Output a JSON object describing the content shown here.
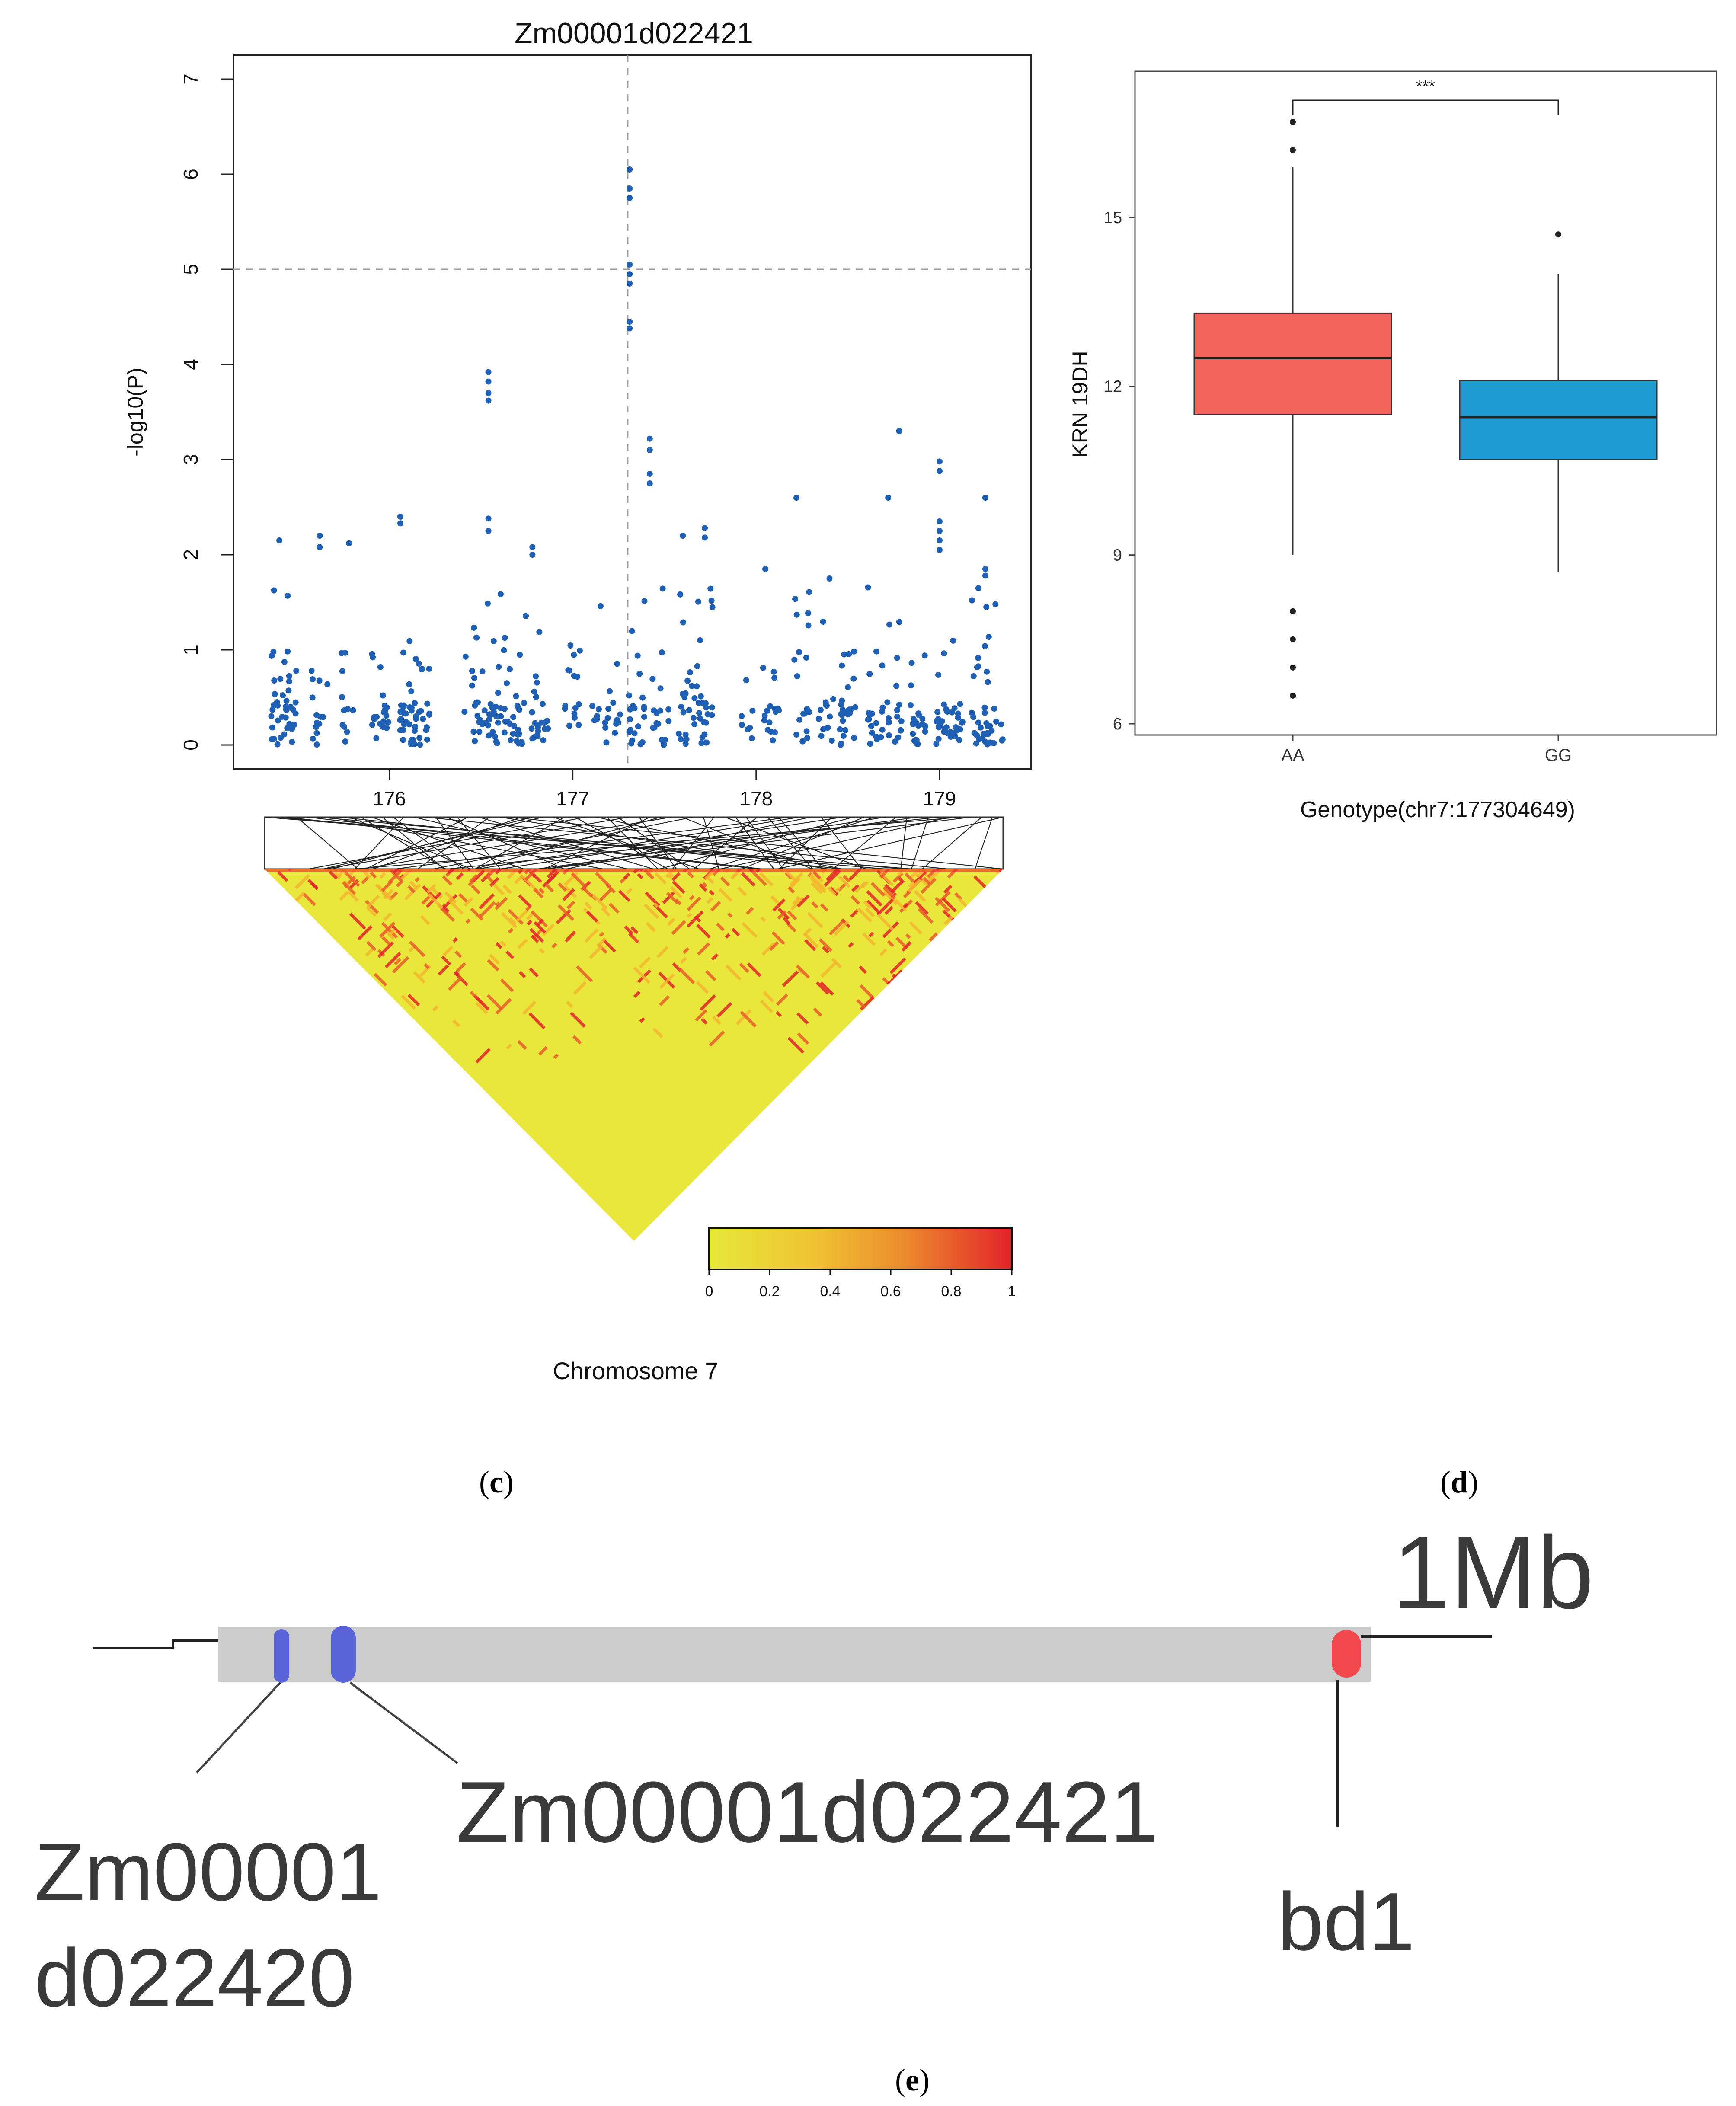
{
  "chart_data": [
    {
      "panel": "c",
      "type": "scatter",
      "title": "Zm00001d022421",
      "xlabel": "Chromosome 7",
      "ylabel": "-log10(P)",
      "xlim": [
        175.15,
        179.5
      ],
      "ylim": [
        -0.25,
        7.25
      ],
      "xticks": [
        176,
        177,
        178,
        179
      ],
      "yticks": [
        0,
        1,
        2,
        3,
        4,
        5,
        6,
        7
      ],
      "threshold_y": 5,
      "lead_snp_x": 177.3,
      "peak_points": [
        {
          "x": 177.31,
          "y": 6.05
        },
        {
          "x": 177.31,
          "y": 5.85
        },
        {
          "x": 177.31,
          "y": 5.75
        },
        {
          "x": 177.31,
          "y": 5.05
        },
        {
          "x": 177.31,
          "y": 4.95
        },
        {
          "x": 177.31,
          "y": 4.85
        },
        {
          "x": 177.31,
          "y": 4.45
        },
        {
          "x": 177.31,
          "y": 4.38
        },
        {
          "x": 176.54,
          "y": 3.92
        },
        {
          "x": 176.54,
          "y": 3.82
        },
        {
          "x": 176.54,
          "y": 3.7
        },
        {
          "x": 176.54,
          "y": 3.62
        },
        {
          "x": 176.54,
          "y": 2.38
        },
        {
          "x": 176.54,
          "y": 2.25
        },
        {
          "x": 177.42,
          "y": 3.22
        },
        {
          "x": 177.42,
          "y": 3.1
        },
        {
          "x": 177.42,
          "y": 2.85
        },
        {
          "x": 177.42,
          "y": 2.75
        },
        {
          "x": 178.78,
          "y": 3.3
        },
        {
          "x": 179.0,
          "y": 2.98
        },
        {
          "x": 179.0,
          "y": 2.88
        },
        {
          "x": 179.0,
          "y": 2.35
        },
        {
          "x": 179.0,
          "y": 2.25
        },
        {
          "x": 179.0,
          "y": 2.15
        },
        {
          "x": 179.0,
          "y": 2.05
        },
        {
          "x": 179.25,
          "y": 2.6
        },
        {
          "x": 178.22,
          "y": 2.6
        },
        {
          "x": 178.72,
          "y": 2.6
        },
        {
          "x": 176.06,
          "y": 2.4
        },
        {
          "x": 176.06,
          "y": 2.33
        },
        {
          "x": 175.62,
          "y": 2.2
        },
        {
          "x": 175.62,
          "y": 2.08
        },
        {
          "x": 175.4,
          "y": 2.15
        },
        {
          "x": 175.78,
          "y": 2.12
        },
        {
          "x": 176.78,
          "y": 2.08
        },
        {
          "x": 176.78,
          "y": 2.0
        },
        {
          "x": 177.72,
          "y": 2.28
        },
        {
          "x": 177.72,
          "y": 2.18
        },
        {
          "x": 177.6,
          "y": 2.2
        },
        {
          "x": 178.05,
          "y": 1.85
        },
        {
          "x": 178.4,
          "y": 1.75
        },
        {
          "x": 179.25,
          "y": 1.85
        },
        {
          "x": 179.25,
          "y": 1.78
        }
      ],
      "background_seed": 7,
      "background_count": 560,
      "ld_heatmap": {
        "type": "heatmap",
        "scale_ticks": [
          "0",
          "0.2",
          "0.4",
          "0.6",
          "0.8",
          "1"
        ],
        "colors": [
          "#e6e83a",
          "#f3b52f",
          "#ea5a2c",
          "#e3232a"
        ]
      }
    },
    {
      "panel": "d",
      "type": "box",
      "title": "",
      "xlabel": "Genotype(chr7:177304649)",
      "ylabel": "KRN 19DH",
      "ylim": [
        5.8,
        17.6
      ],
      "yticks": [
        6,
        9,
        12,
        15
      ],
      "categories": [
        "AA",
        "GG"
      ],
      "boxes": [
        {
          "name": "AA",
          "color": "#f0645c",
          "whisker_low": 9.0,
          "q1": 11.5,
          "median": 12.5,
          "q3": 13.3,
          "whisker_high": 15.9,
          "outliers": [
            16.7,
            16.2,
            8.0,
            7.5,
            7.0,
            6.5
          ]
        },
        {
          "name": "GG",
          "color": "#1f9bd2",
          "whisker_low": 8.7,
          "q1": 10.7,
          "median": 11.45,
          "q3": 12.1,
          "whisker_high": 14.0,
          "outliers": [
            14.7
          ]
        }
      ],
      "significance": "***"
    }
  ],
  "captions": {
    "c": "c",
    "d": "d",
    "e": "e"
  },
  "panel_e": {
    "scale_label": "1Mb",
    "gene_a": {
      "line1": "Zm00001",
      "line2": "d022420",
      "color": "#5b63d9"
    },
    "gene_b": {
      "label": "Zm00001d022421",
      "color": "#5b63d9"
    },
    "gene_c": {
      "label": "bd1",
      "color": "#f0484c"
    },
    "bar_color": "#cccccc"
  }
}
